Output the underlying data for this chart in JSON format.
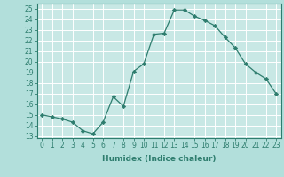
{
  "x": [
    0,
    1,
    2,
    3,
    4,
    5,
    6,
    7,
    8,
    9,
    10,
    11,
    12,
    13,
    14,
    15,
    16,
    17,
    18,
    19,
    20,
    21,
    22,
    23
  ],
  "y": [
    15.0,
    14.8,
    14.6,
    14.3,
    13.5,
    13.2,
    14.3,
    16.7,
    15.8,
    19.1,
    19.8,
    22.6,
    22.7,
    24.9,
    24.9,
    24.3,
    23.9,
    23.4,
    22.3,
    21.3,
    19.8,
    19.0,
    18.4,
    17.0
  ],
  "line_color": "#2e7d6e",
  "marker": "D",
  "marker_size": 2.2,
  "xlabel": "Humidex (Indice chaleur)",
  "yticks": [
    13,
    14,
    15,
    16,
    17,
    18,
    19,
    20,
    21,
    22,
    23,
    24,
    25
  ],
  "xticks": [
    0,
    1,
    2,
    3,
    4,
    5,
    6,
    7,
    8,
    9,
    10,
    11,
    12,
    13,
    14,
    15,
    16,
    17,
    18,
    19,
    20,
    21,
    22,
    23
  ],
  "xlim": [
    -0.5,
    23.5
  ],
  "ylim": [
    12.8,
    25.5
  ],
  "bg_color": "#b2dfdb",
  "plot_bg": "#c8e8e5",
  "grid_color": "#ffffff",
  "tick_color": "#2e7d6e",
  "label_color": "#2e7d6e",
  "tick_fontsize": 5.5,
  "label_fontsize": 6.5
}
